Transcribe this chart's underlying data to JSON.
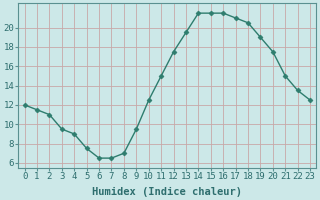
{
  "x": [
    0,
    1,
    2,
    3,
    4,
    5,
    6,
    7,
    8,
    9,
    10,
    11,
    12,
    13,
    14,
    15,
    16,
    17,
    18,
    19,
    20,
    21,
    22,
    23
  ],
  "y": [
    12,
    11.5,
    11,
    9.5,
    9,
    7.5,
    6.5,
    6.5,
    7,
    9.5,
    12.5,
    15,
    17.5,
    19.5,
    21.5,
    21.5,
    21.5,
    21,
    20.5,
    19,
    17.5,
    15,
    13.5,
    12.5
  ],
  "line_color": "#2e7d6e",
  "marker": "D",
  "marker_size": 2.5,
  "bg_color": "#cce8e8",
  "grid_color_minor": "#d8e8e8",
  "grid_color_major": "#b8d4d4",
  "xlabel": "Humidex (Indice chaleur)",
  "xlabel_fontsize": 7.5,
  "ylabel_ticks": [
    6,
    8,
    10,
    12,
    14,
    16,
    18,
    20
  ],
  "ylim": [
    5.5,
    22.5
  ],
  "xlim": [
    -0.5,
    23.5
  ],
  "xticks": [
    0,
    1,
    2,
    3,
    4,
    5,
    6,
    7,
    8,
    9,
    10,
    11,
    12,
    13,
    14,
    15,
    16,
    17,
    18,
    19,
    20,
    21,
    22,
    23
  ],
  "tick_fontsize": 6.5,
  "line_width": 1.0
}
